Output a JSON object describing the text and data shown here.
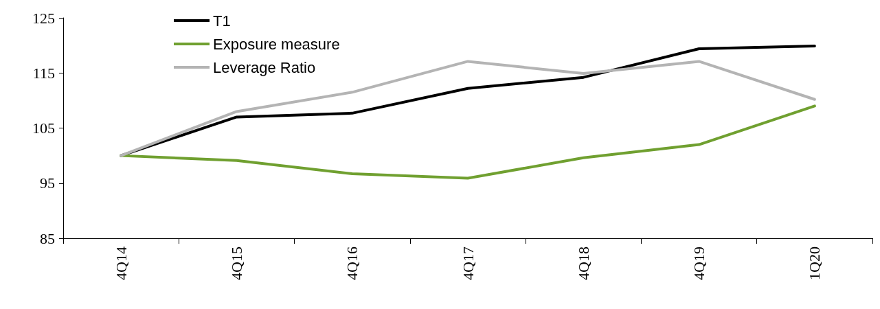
{
  "chart_data": {
    "type": "line",
    "categories": [
      "4Q14",
      "4Q15",
      "4Q16",
      "4Q17",
      "4Q18",
      "4Q19",
      "1Q20"
    ],
    "series": [
      {
        "name": "T1",
        "color": "#000000",
        "values": [
          100,
          107.0,
          107.7,
          112.2,
          114.2,
          119.4,
          119.9
        ]
      },
      {
        "name": "Exposure measure",
        "color": "#70a030",
        "values": [
          100,
          99.1,
          96.7,
          95.9,
          99.6,
          102.0,
          109.0
        ]
      },
      {
        "name": "Leverage Ratio",
        "color": "#b4b4b4",
        "values": [
          100,
          108.0,
          111.5,
          117.1,
          114.9,
          117.1,
          110.2
        ]
      }
    ],
    "ylim": [
      85,
      125
    ],
    "yticks": [
      85,
      95,
      105,
      115,
      125
    ],
    "grid": false,
    "legend": "top left",
    "marker": "none",
    "line_style": "solid"
  }
}
